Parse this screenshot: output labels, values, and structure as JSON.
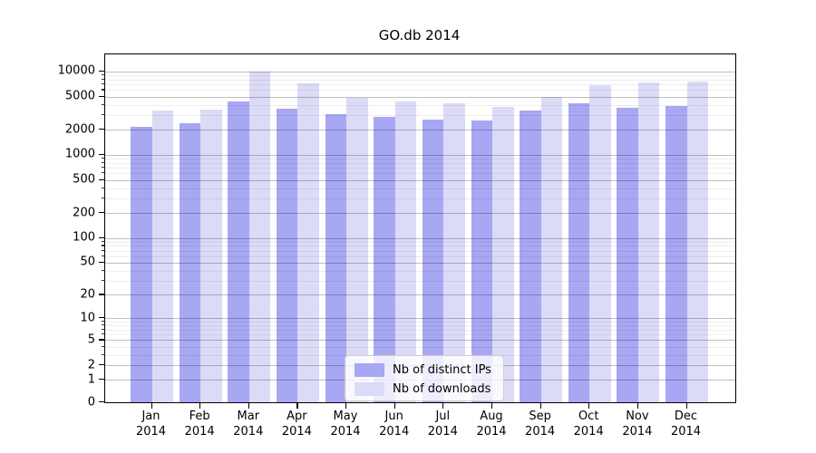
{
  "title": "GO.db 2014",
  "legend": {
    "items": [
      {
        "label": "Nb of distinct IPs",
        "color": "#a7a7f3"
      },
      {
        "label": "Nb of downloads",
        "color": "#dbdbf8"
      }
    ]
  },
  "chart_data": {
    "type": "bar",
    "title": "GO.db 2014",
    "categories": [
      "Jan",
      "Feb",
      "Mar",
      "Apr",
      "May",
      "Jun",
      "Jul",
      "Aug",
      "Sep",
      "Oct",
      "Nov",
      "Dec"
    ],
    "category_year": "2014",
    "series": [
      {
        "name": "Nb of distinct IPs",
        "color": "#a7a7f3",
        "values": [
          2150,
          2400,
          4400,
          3550,
          3050,
          2850,
          2650,
          2600,
          3400,
          4150,
          3650,
          3850
        ]
      },
      {
        "name": "Nb of downloads",
        "color": "#dbdbf8",
        "values": [
          3400,
          3500,
          10000,
          7300,
          4850,
          4400,
          4150,
          3750,
          4950,
          6850,
          7400,
          7550
        ]
      }
    ],
    "xlabel": "",
    "ylabel": "",
    "yscale": "log10(1+x)",
    "yticks": [
      0,
      1,
      2,
      5,
      10,
      20,
      50,
      100,
      200,
      500,
      1000,
      2000,
      5000,
      10000
    ],
    "ylim": [
      0,
      16000
    ],
    "grid": "horizontal major and minor gridlines drawn over bars",
    "legend_position": "lower center",
    "bar_colors": {
      "distinct_ips": "#a7a7f3",
      "downloads": "#dbdbf8"
    }
  }
}
